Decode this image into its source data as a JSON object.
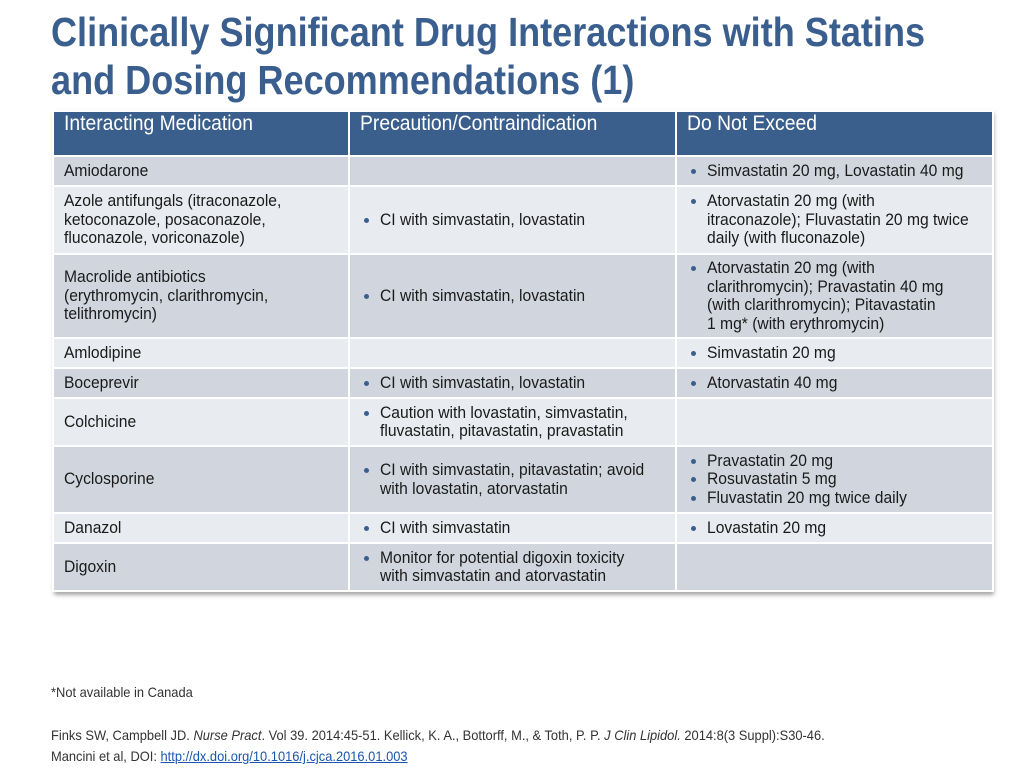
{
  "title": {
    "line1": "Clinically Significant Drug Interactions with Statins",
    "line2": "and Dosing Recommendations (1)"
  },
  "table": {
    "headers": [
      "Interacting Medication",
      "Precaution/Contraindication",
      "Do Not Exceed"
    ],
    "rows": [
      {
        "medication": [
          "Amiodarone"
        ],
        "precaution": [],
        "limit": [
          [
            "Simvastatin 20 mg, Lovastatin 40 mg"
          ]
        ]
      },
      {
        "medication": [
          "Azole antifungals (itraconazole,",
          "ketoconazole, posaconazole,",
          "fluconazole, voriconazole)"
        ],
        "precaution": [
          [
            "CI with simvastatin, lovastatin"
          ]
        ],
        "limit": [
          [
            "Atorvastatin 20 mg (with",
            "itraconazole); Fluvastatin 20 mg twice",
            "daily (with fluconazole)"
          ]
        ]
      },
      {
        "medication": [
          "Macrolide antibiotics",
          "(erythromycin, clarithromycin,",
          "telithromycin)"
        ],
        "precaution": [
          [
            "CI with simvastatin, lovastatin"
          ]
        ],
        "limit": [
          [
            "Atorvastatin 20 mg (with",
            "clarithromycin); Pravastatin 40 mg",
            "(with clarithromycin); Pitavastatin",
            "1 mg* (with erythromycin)"
          ]
        ]
      },
      {
        "medication": [
          "Amlodipine"
        ],
        "precaution": [],
        "limit": [
          [
            "Simvastatin 20 mg"
          ]
        ]
      },
      {
        "medication": [
          "Boceprevir"
        ],
        "precaution": [
          [
            "CI with simvastatin, lovastatin"
          ]
        ],
        "limit": [
          [
            "Atorvastatin 40 mg"
          ]
        ]
      },
      {
        "medication": [
          "Colchicine"
        ],
        "precaution": [
          [
            "Caution with lovastatin, simvastatin,",
            "fluvastatin, pitavastatin, pravastatin"
          ]
        ],
        "limit": []
      },
      {
        "medication": [
          "Cyclosporine"
        ],
        "precaution": [
          [
            "CI with simvastatin, pitavastatin; avoid",
            "with lovastatin, atorvastatin"
          ]
        ],
        "limit": [
          [
            "Pravastatin 20 mg"
          ],
          [
            "Rosuvastatin 5 mg"
          ],
          [
            "Fluvastatin 20 mg twice daily"
          ]
        ]
      },
      {
        "medication": [
          "Danazol"
        ],
        "precaution": [
          [
            "CI with simvastatin"
          ]
        ],
        "limit": [
          [
            "Lovastatin 20 mg"
          ]
        ]
      },
      {
        "medication": [
          "Digoxin"
        ],
        "precaution": [
          [
            "Monitor for potential digoxin toxicity",
            "with simvastatin and atorvastatin"
          ]
        ],
        "limit": []
      }
    ]
  },
  "footnote": "*Not available in Canada",
  "references": {
    "line1_a": "Finks SW, Campbell JD. ",
    "line1_b": "Nurse Pract",
    "line1_c": ". Vol 39. 2014:45-51. Kellick, K. A., Bottorff, M., & Toth, P. P. ",
    "line1_d": "J Clin Lipidol.",
    "line1_e": " 2014:8(3 Suppl):S30-46.",
    "line2_a": "Mancini et al, DOI: ",
    "line2_link": "http://dx.doi.org/10.1016/j.cjca.2016.01.003"
  }
}
